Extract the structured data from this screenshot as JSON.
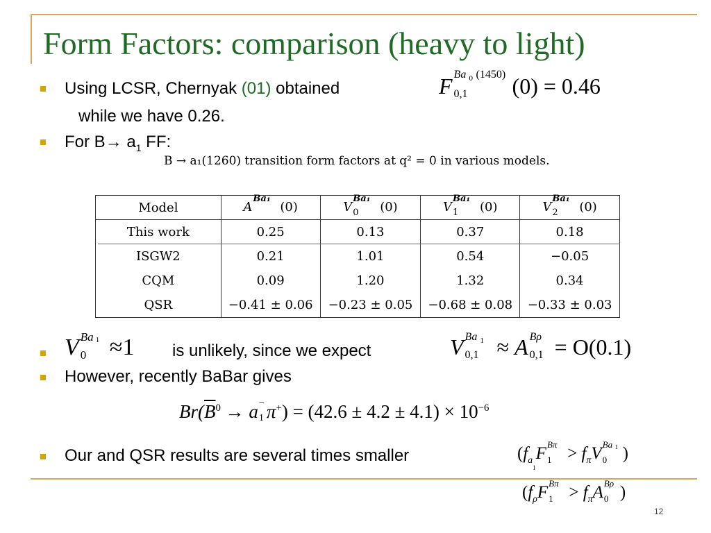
{
  "slide": {
    "title": "Form Factors: comparison (heavy to light)",
    "page_number": "12"
  },
  "bullets": {
    "b1_text": "Using LCSR, Chernyak ",
    "b1_cite": "(01)",
    "b1_after": " obtained",
    "b1_cont": "while we have  0.26.",
    "b2_text": "For B→ a",
    "b2_sub": "1",
    "b2_after": " FF:",
    "b3_text": "is unlikely, since we expect",
    "b4_text": "However, recently BaBar gives",
    "b5_text": "Our and QSR results are several times smaller"
  },
  "eq1": {
    "F": "F",
    "sup_ba": "Ba",
    "sup_sub0": "0",
    "sup_mass": "(1450)",
    "sub": "0,1",
    "rest": "(0) = 0.46"
  },
  "eq_v0": {
    "V": "V",
    "sup": "Ba",
    "sup_sub": "1",
    "sub": "0",
    "rest": "≈1"
  },
  "eq_expect": {
    "V": "V",
    "v_sup": "Ba",
    "v_sup_sub": "1",
    "v_sub": "0,1",
    "approx": "≈",
    "A": "A",
    "a_sup": "Bρ",
    "a_sub": "0,1",
    "rest": "= O(0.1)"
  },
  "eq_br": {
    "lead": "Br(",
    "B": "B",
    "b_sup": "0",
    "arrow": "→",
    "a": "a",
    "a_sup": "−",
    "a_sub": "1",
    "pi": "π",
    "pi_sup": "+",
    "rest": ") = (42.6 ± 4.2 ± 4.1) × 10",
    "exp": "−6"
  },
  "eq_ratio1": {
    "open": "(",
    "f1": "f",
    "f1_sub": "a",
    "f1_subsub": "1",
    "F": "F",
    "F_sup": "Bπ",
    "F_sub": "1",
    "gt": " > ",
    "f2": "f",
    "f2_sub": "π",
    "V": "V",
    "V_sup": "Ba",
    "V_supsub": "1",
    "V_sub": "0",
    "close": ")"
  },
  "eq_ratio2": {
    "open": "(",
    "f1": "f",
    "f1_sub": "ρ",
    "F": "F",
    "F_sup": "Bπ",
    "F_sub": "1",
    "gt": " > ",
    "f2": "f",
    "f2_sub": "π",
    "A": "A",
    "A_sup": "Bρ",
    "A_sub": "0",
    "close": ")"
  },
  "table": {
    "caption": "B → a₁(1260) transition form factors at q² = 0 in various models.",
    "headers": [
      "Model",
      "A",
      "V",
      "V",
      "V"
    ],
    "header_sups": [
      "",
      "Ba₁",
      "Ba₁",
      "Ba₁",
      "Ba₁"
    ],
    "header_subs": [
      "",
      "",
      "0",
      "1",
      "2"
    ],
    "header_tail": [
      "",
      "(0)",
      "(0)",
      "(0)",
      "(0)"
    ],
    "rows": [
      [
        "This work",
        "0.25",
        "0.13",
        "0.37",
        "0.18"
      ],
      [
        "ISGW2",
        "0.21",
        "1.01",
        "0.54",
        "−0.05"
      ],
      [
        "CQM",
        "0.09",
        "1.20",
        "1.32",
        "0.34"
      ],
      [
        "QSR",
        "−0.41 ± 0.06",
        "−0.23 ± 0.05",
        "−0.68 ± 0.08",
        "−0.33 ± 0.03"
      ]
    ]
  },
  "colors": {
    "title": "#1f6a24",
    "bullet": "#d4a400",
    "rule": "#d4a85a",
    "highlight_line": "#e53333"
  }
}
